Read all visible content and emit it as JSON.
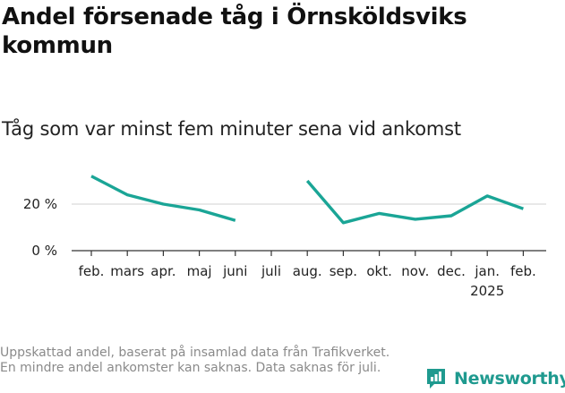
{
  "title": "Andel försenade tåg i Örnsköldsviks kommun",
  "subtitle": "Tåg som var minst fem minuter sena vid ankomst",
  "footnote": "Uppskattad andel, baserat på insamlad data från Trafikverket. En mindre andel ankomster kan saknas. Data saknas för juli.",
  "brand": {
    "name": "Newsworthy",
    "color": "#1f9a8f"
  },
  "colors": {
    "line": "#1aa596",
    "grid": "#d9d9d9",
    "axis": "#333333"
  },
  "chart_data": {
    "type": "line",
    "categories": [
      "feb.",
      "mars",
      "apr.",
      "maj",
      "juni",
      "juli",
      "aug.",
      "sep.",
      "okt.",
      "nov.",
      "dec.",
      "jan.",
      "feb."
    ],
    "year_labels": [
      "",
      "",
      "",
      "",
      "",
      "",
      "",
      "",
      "",
      "",
      "",
      "2025",
      ""
    ],
    "series": [
      {
        "values": [
          32,
          24,
          20,
          17.5,
          13,
          null,
          30,
          12,
          16,
          13.5,
          15,
          23.5,
          18
        ]
      }
    ],
    "yticks": [
      {
        "value": 0,
        "label": "0 %"
      },
      {
        "value": 20,
        "label": "20 %"
      }
    ],
    "ylim": [
      0,
      35
    ],
    "grid": true
  }
}
